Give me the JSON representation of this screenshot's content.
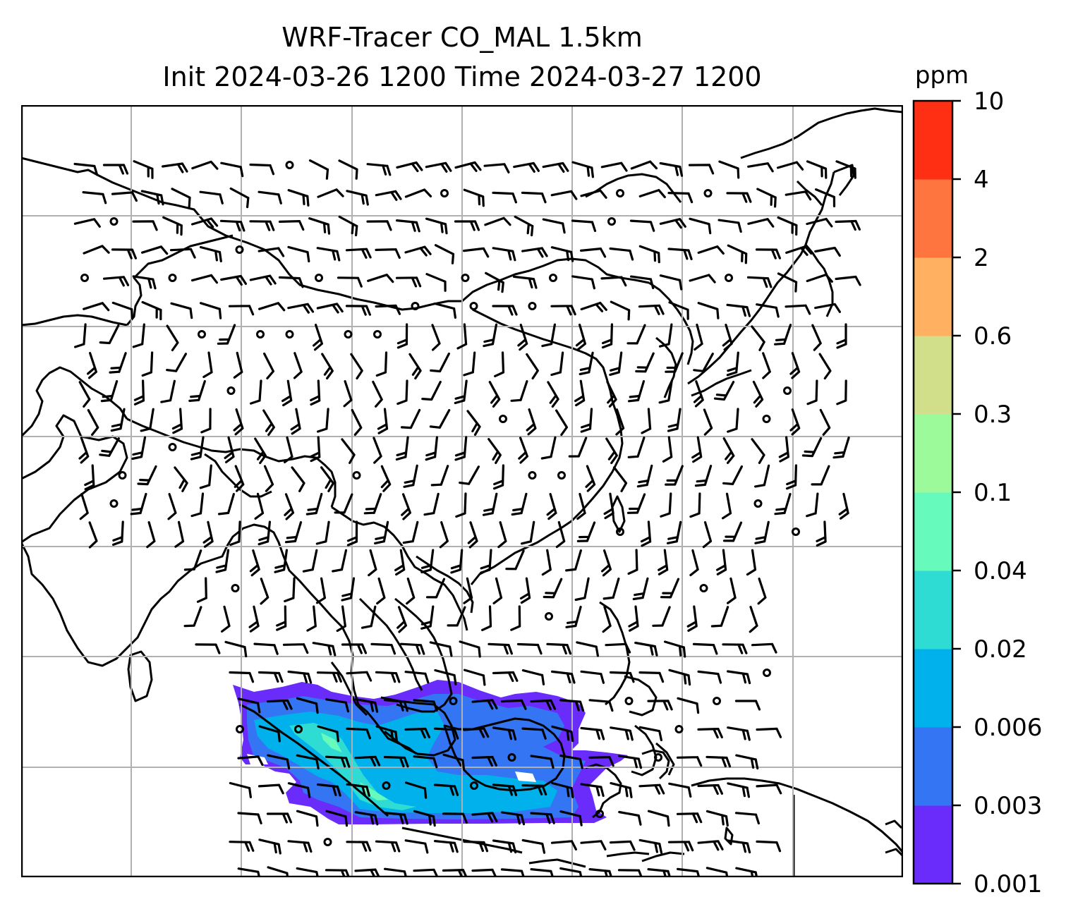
{
  "title": {
    "line1": "WRF-Tracer CO_MAL 1.5km",
    "line2": "Init 2024-03-26 1200 Time 2024-03-27 1200"
  },
  "colorbar": {
    "unit": "ppm",
    "levels": [
      "0.001",
      "0.003",
      "0.006",
      "0.02",
      "0.04",
      "0.1",
      "0.3",
      "0.6",
      "2",
      "4",
      "10"
    ],
    "colors": [
      "#6a2cfb",
      "#3475f4",
      "#00b1eb",
      "#2edcd4",
      "#66fbbd",
      "#9dfa9a",
      "#d1df8a",
      "#ffb161",
      "#ff7540",
      "#ff2f14"
    ]
  },
  "map": {
    "gridline_color": "#b0b0b0",
    "coastline_color": "#000000",
    "wind_barbs": "shown"
  }
}
